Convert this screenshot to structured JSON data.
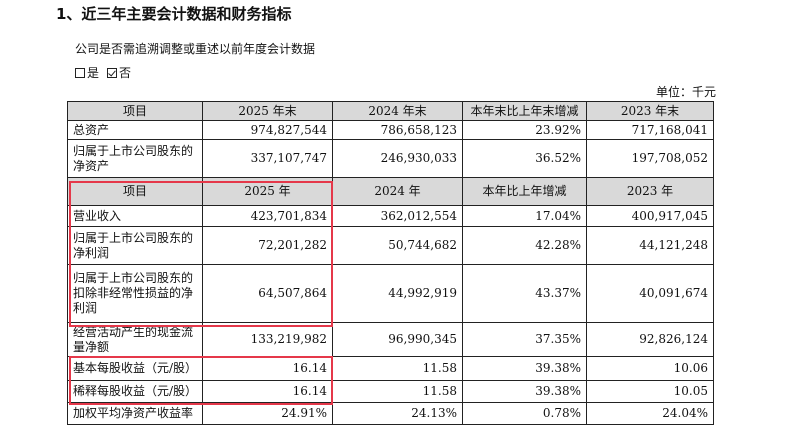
{
  "heading": "1、近三年主要会计数据和财务指标",
  "question": "公司是否需追溯调整或重述以前年度会计数据",
  "options": [
    {
      "label": "是",
      "checked": false
    },
    {
      "label": "否",
      "checked": true
    }
  ],
  "unit": "单位：千元",
  "table": {
    "header1": [
      "项目",
      "2025 年末",
      "2024 年末",
      "本年末比上年末增减",
      "2023 年末"
    ],
    "section1": [
      [
        "总资产",
        "974,827,544",
        "786,658,123",
        "23.92%",
        "717,168,041"
      ],
      [
        "归属于上市公司股东的净资产",
        "337,107,747",
        "246,930,033",
        "36.52%",
        "197,708,052"
      ]
    ],
    "header2": [
      "项目",
      "2025 年",
      "2024 年",
      "本年比上年增减",
      "2023 年"
    ],
    "section2": [
      [
        "营业收入",
        "423,701,834",
        "362,012,554",
        "17.04%",
        "400,917,045"
      ],
      [
        "归属于上市公司股东的净利润",
        "72,201,282",
        "50,744,682",
        "42.28%",
        "44,121,248"
      ],
      [
        "归属于上市公司股东的扣除非经常性损益的净利润",
        "64,507,864",
        "44,992,919",
        "43.37%",
        "40,091,674"
      ],
      [
        "经营活动产生的现金流量净额",
        "133,219,982",
        "96,990,345",
        "37.35%",
        "92,826,124"
      ],
      [
        "基本每股收益（元/股）",
        "16.14",
        "11.58",
        "39.38%",
        "10.06"
      ],
      [
        "稀释每股收益（元/股）",
        "16.14",
        "11.58",
        "39.38%",
        "10.05"
      ],
      [
        "加权平均净资产收益率",
        "24.91%",
        "24.13%",
        "0.78%",
        "24.04%"
      ]
    ]
  },
  "colors": {
    "header_bg": "#d9d9d9",
    "highlight_border": "#e5384a"
  }
}
